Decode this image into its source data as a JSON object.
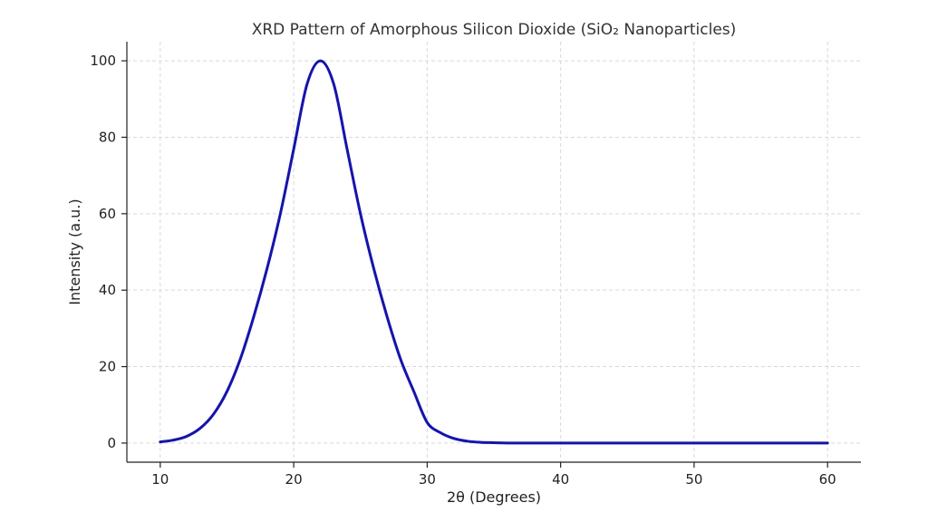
{
  "chart_data": {
    "type": "line",
    "title": "XRD Pattern of Amorphous Silicon Dioxide (SiO₂ Nanoparticles)",
    "xlabel": "2θ (Degrees)",
    "ylabel": "Intensity (a.u.)",
    "xlim": [
      7.5,
      62.5
    ],
    "ylim": [
      -5,
      105
    ],
    "x_ticks": [
      10,
      20,
      30,
      40,
      50,
      60
    ],
    "y_ticks": [
      0,
      20,
      40,
      60,
      80,
      100
    ],
    "grid": true,
    "colors": {
      "line": "#1010c8"
    },
    "series": [
      {
        "x": [
          10,
          11,
          12,
          13,
          14,
          15,
          16,
          17,
          18,
          19,
          20,
          21,
          22,
          23,
          24,
          25,
          26,
          27,
          28,
          29,
          30,
          31,
          32,
          33,
          34,
          35,
          36,
          38,
          40,
          45,
          50,
          55,
          60
        ],
        "values": [
          0.3,
          0.8,
          1.8,
          3.9,
          7.6,
          13.5,
          22.0,
          33.0,
          45.6,
          60.0,
          76.9,
          93.9,
          100,
          93.9,
          76.9,
          60.0,
          45.6,
          33.0,
          22.0,
          13.5,
          5.4,
          2.7,
          1.2,
          0.5,
          0.2,
          0.1,
          0,
          0,
          0,
          0,
          0,
          0,
          0
        ]
      }
    ]
  }
}
